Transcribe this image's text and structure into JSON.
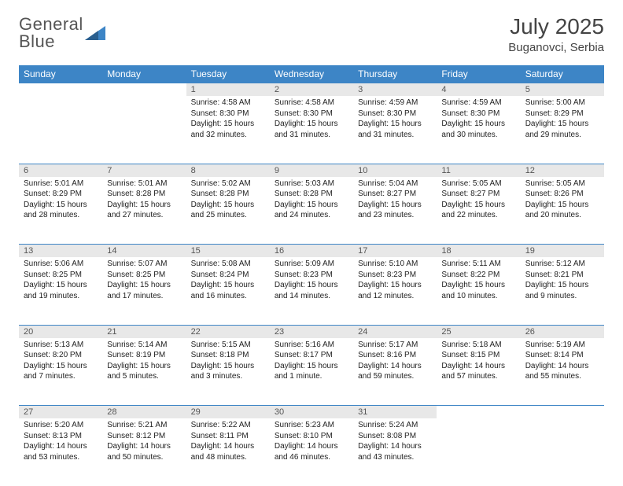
{
  "logo": {
    "line1": "General",
    "line2": "Blue"
  },
  "title": "July 2025",
  "location": "Buganovci, Serbia",
  "colors": {
    "header_bg": "#3d85c6",
    "header_text": "#ffffff",
    "daynum_bg": "#e8e8e8",
    "border": "#3d85c6",
    "logo_gray": "#555555",
    "logo_blue": "#4d8fc9"
  },
  "weekdays": [
    "Sunday",
    "Monday",
    "Tuesday",
    "Wednesday",
    "Thursday",
    "Friday",
    "Saturday"
  ],
  "weeks": [
    {
      "nums": [
        "",
        "",
        "1",
        "2",
        "3",
        "4",
        "5"
      ],
      "cells": [
        null,
        null,
        {
          "sr": "Sunrise: 4:58 AM",
          "ss": "Sunset: 8:30 PM",
          "d1": "Daylight: 15 hours",
          "d2": "and 32 minutes."
        },
        {
          "sr": "Sunrise: 4:58 AM",
          "ss": "Sunset: 8:30 PM",
          "d1": "Daylight: 15 hours",
          "d2": "and 31 minutes."
        },
        {
          "sr": "Sunrise: 4:59 AM",
          "ss": "Sunset: 8:30 PM",
          "d1": "Daylight: 15 hours",
          "d2": "and 31 minutes."
        },
        {
          "sr": "Sunrise: 4:59 AM",
          "ss": "Sunset: 8:30 PM",
          "d1": "Daylight: 15 hours",
          "d2": "and 30 minutes."
        },
        {
          "sr": "Sunrise: 5:00 AM",
          "ss": "Sunset: 8:29 PM",
          "d1": "Daylight: 15 hours",
          "d2": "and 29 minutes."
        }
      ]
    },
    {
      "nums": [
        "6",
        "7",
        "8",
        "9",
        "10",
        "11",
        "12"
      ],
      "cells": [
        {
          "sr": "Sunrise: 5:01 AM",
          "ss": "Sunset: 8:29 PM",
          "d1": "Daylight: 15 hours",
          "d2": "and 28 minutes."
        },
        {
          "sr": "Sunrise: 5:01 AM",
          "ss": "Sunset: 8:28 PM",
          "d1": "Daylight: 15 hours",
          "d2": "and 27 minutes."
        },
        {
          "sr": "Sunrise: 5:02 AM",
          "ss": "Sunset: 8:28 PM",
          "d1": "Daylight: 15 hours",
          "d2": "and 25 minutes."
        },
        {
          "sr": "Sunrise: 5:03 AM",
          "ss": "Sunset: 8:28 PM",
          "d1": "Daylight: 15 hours",
          "d2": "and 24 minutes."
        },
        {
          "sr": "Sunrise: 5:04 AM",
          "ss": "Sunset: 8:27 PM",
          "d1": "Daylight: 15 hours",
          "d2": "and 23 minutes."
        },
        {
          "sr": "Sunrise: 5:05 AM",
          "ss": "Sunset: 8:27 PM",
          "d1": "Daylight: 15 hours",
          "d2": "and 22 minutes."
        },
        {
          "sr": "Sunrise: 5:05 AM",
          "ss": "Sunset: 8:26 PM",
          "d1": "Daylight: 15 hours",
          "d2": "and 20 minutes."
        }
      ]
    },
    {
      "nums": [
        "13",
        "14",
        "15",
        "16",
        "17",
        "18",
        "19"
      ],
      "cells": [
        {
          "sr": "Sunrise: 5:06 AM",
          "ss": "Sunset: 8:25 PM",
          "d1": "Daylight: 15 hours",
          "d2": "and 19 minutes."
        },
        {
          "sr": "Sunrise: 5:07 AM",
          "ss": "Sunset: 8:25 PM",
          "d1": "Daylight: 15 hours",
          "d2": "and 17 minutes."
        },
        {
          "sr": "Sunrise: 5:08 AM",
          "ss": "Sunset: 8:24 PM",
          "d1": "Daylight: 15 hours",
          "d2": "and 16 minutes."
        },
        {
          "sr": "Sunrise: 5:09 AM",
          "ss": "Sunset: 8:23 PM",
          "d1": "Daylight: 15 hours",
          "d2": "and 14 minutes."
        },
        {
          "sr": "Sunrise: 5:10 AM",
          "ss": "Sunset: 8:23 PM",
          "d1": "Daylight: 15 hours",
          "d2": "and 12 minutes."
        },
        {
          "sr": "Sunrise: 5:11 AM",
          "ss": "Sunset: 8:22 PM",
          "d1": "Daylight: 15 hours",
          "d2": "and 10 minutes."
        },
        {
          "sr": "Sunrise: 5:12 AM",
          "ss": "Sunset: 8:21 PM",
          "d1": "Daylight: 15 hours",
          "d2": "and 9 minutes."
        }
      ]
    },
    {
      "nums": [
        "20",
        "21",
        "22",
        "23",
        "24",
        "25",
        "26"
      ],
      "cells": [
        {
          "sr": "Sunrise: 5:13 AM",
          "ss": "Sunset: 8:20 PM",
          "d1": "Daylight: 15 hours",
          "d2": "and 7 minutes."
        },
        {
          "sr": "Sunrise: 5:14 AM",
          "ss": "Sunset: 8:19 PM",
          "d1": "Daylight: 15 hours",
          "d2": "and 5 minutes."
        },
        {
          "sr": "Sunrise: 5:15 AM",
          "ss": "Sunset: 8:18 PM",
          "d1": "Daylight: 15 hours",
          "d2": "and 3 minutes."
        },
        {
          "sr": "Sunrise: 5:16 AM",
          "ss": "Sunset: 8:17 PM",
          "d1": "Daylight: 15 hours",
          "d2": "and 1 minute."
        },
        {
          "sr": "Sunrise: 5:17 AM",
          "ss": "Sunset: 8:16 PM",
          "d1": "Daylight: 14 hours",
          "d2": "and 59 minutes."
        },
        {
          "sr": "Sunrise: 5:18 AM",
          "ss": "Sunset: 8:15 PM",
          "d1": "Daylight: 14 hours",
          "d2": "and 57 minutes."
        },
        {
          "sr": "Sunrise: 5:19 AM",
          "ss": "Sunset: 8:14 PM",
          "d1": "Daylight: 14 hours",
          "d2": "and 55 minutes."
        }
      ]
    },
    {
      "nums": [
        "27",
        "28",
        "29",
        "30",
        "31",
        "",
        ""
      ],
      "cells": [
        {
          "sr": "Sunrise: 5:20 AM",
          "ss": "Sunset: 8:13 PM",
          "d1": "Daylight: 14 hours",
          "d2": "and 53 minutes."
        },
        {
          "sr": "Sunrise: 5:21 AM",
          "ss": "Sunset: 8:12 PM",
          "d1": "Daylight: 14 hours",
          "d2": "and 50 minutes."
        },
        {
          "sr": "Sunrise: 5:22 AM",
          "ss": "Sunset: 8:11 PM",
          "d1": "Daylight: 14 hours",
          "d2": "and 48 minutes."
        },
        {
          "sr": "Sunrise: 5:23 AM",
          "ss": "Sunset: 8:10 PM",
          "d1": "Daylight: 14 hours",
          "d2": "and 46 minutes."
        },
        {
          "sr": "Sunrise: 5:24 AM",
          "ss": "Sunset: 8:08 PM",
          "d1": "Daylight: 14 hours",
          "d2": "and 43 minutes."
        },
        null,
        null
      ]
    }
  ]
}
